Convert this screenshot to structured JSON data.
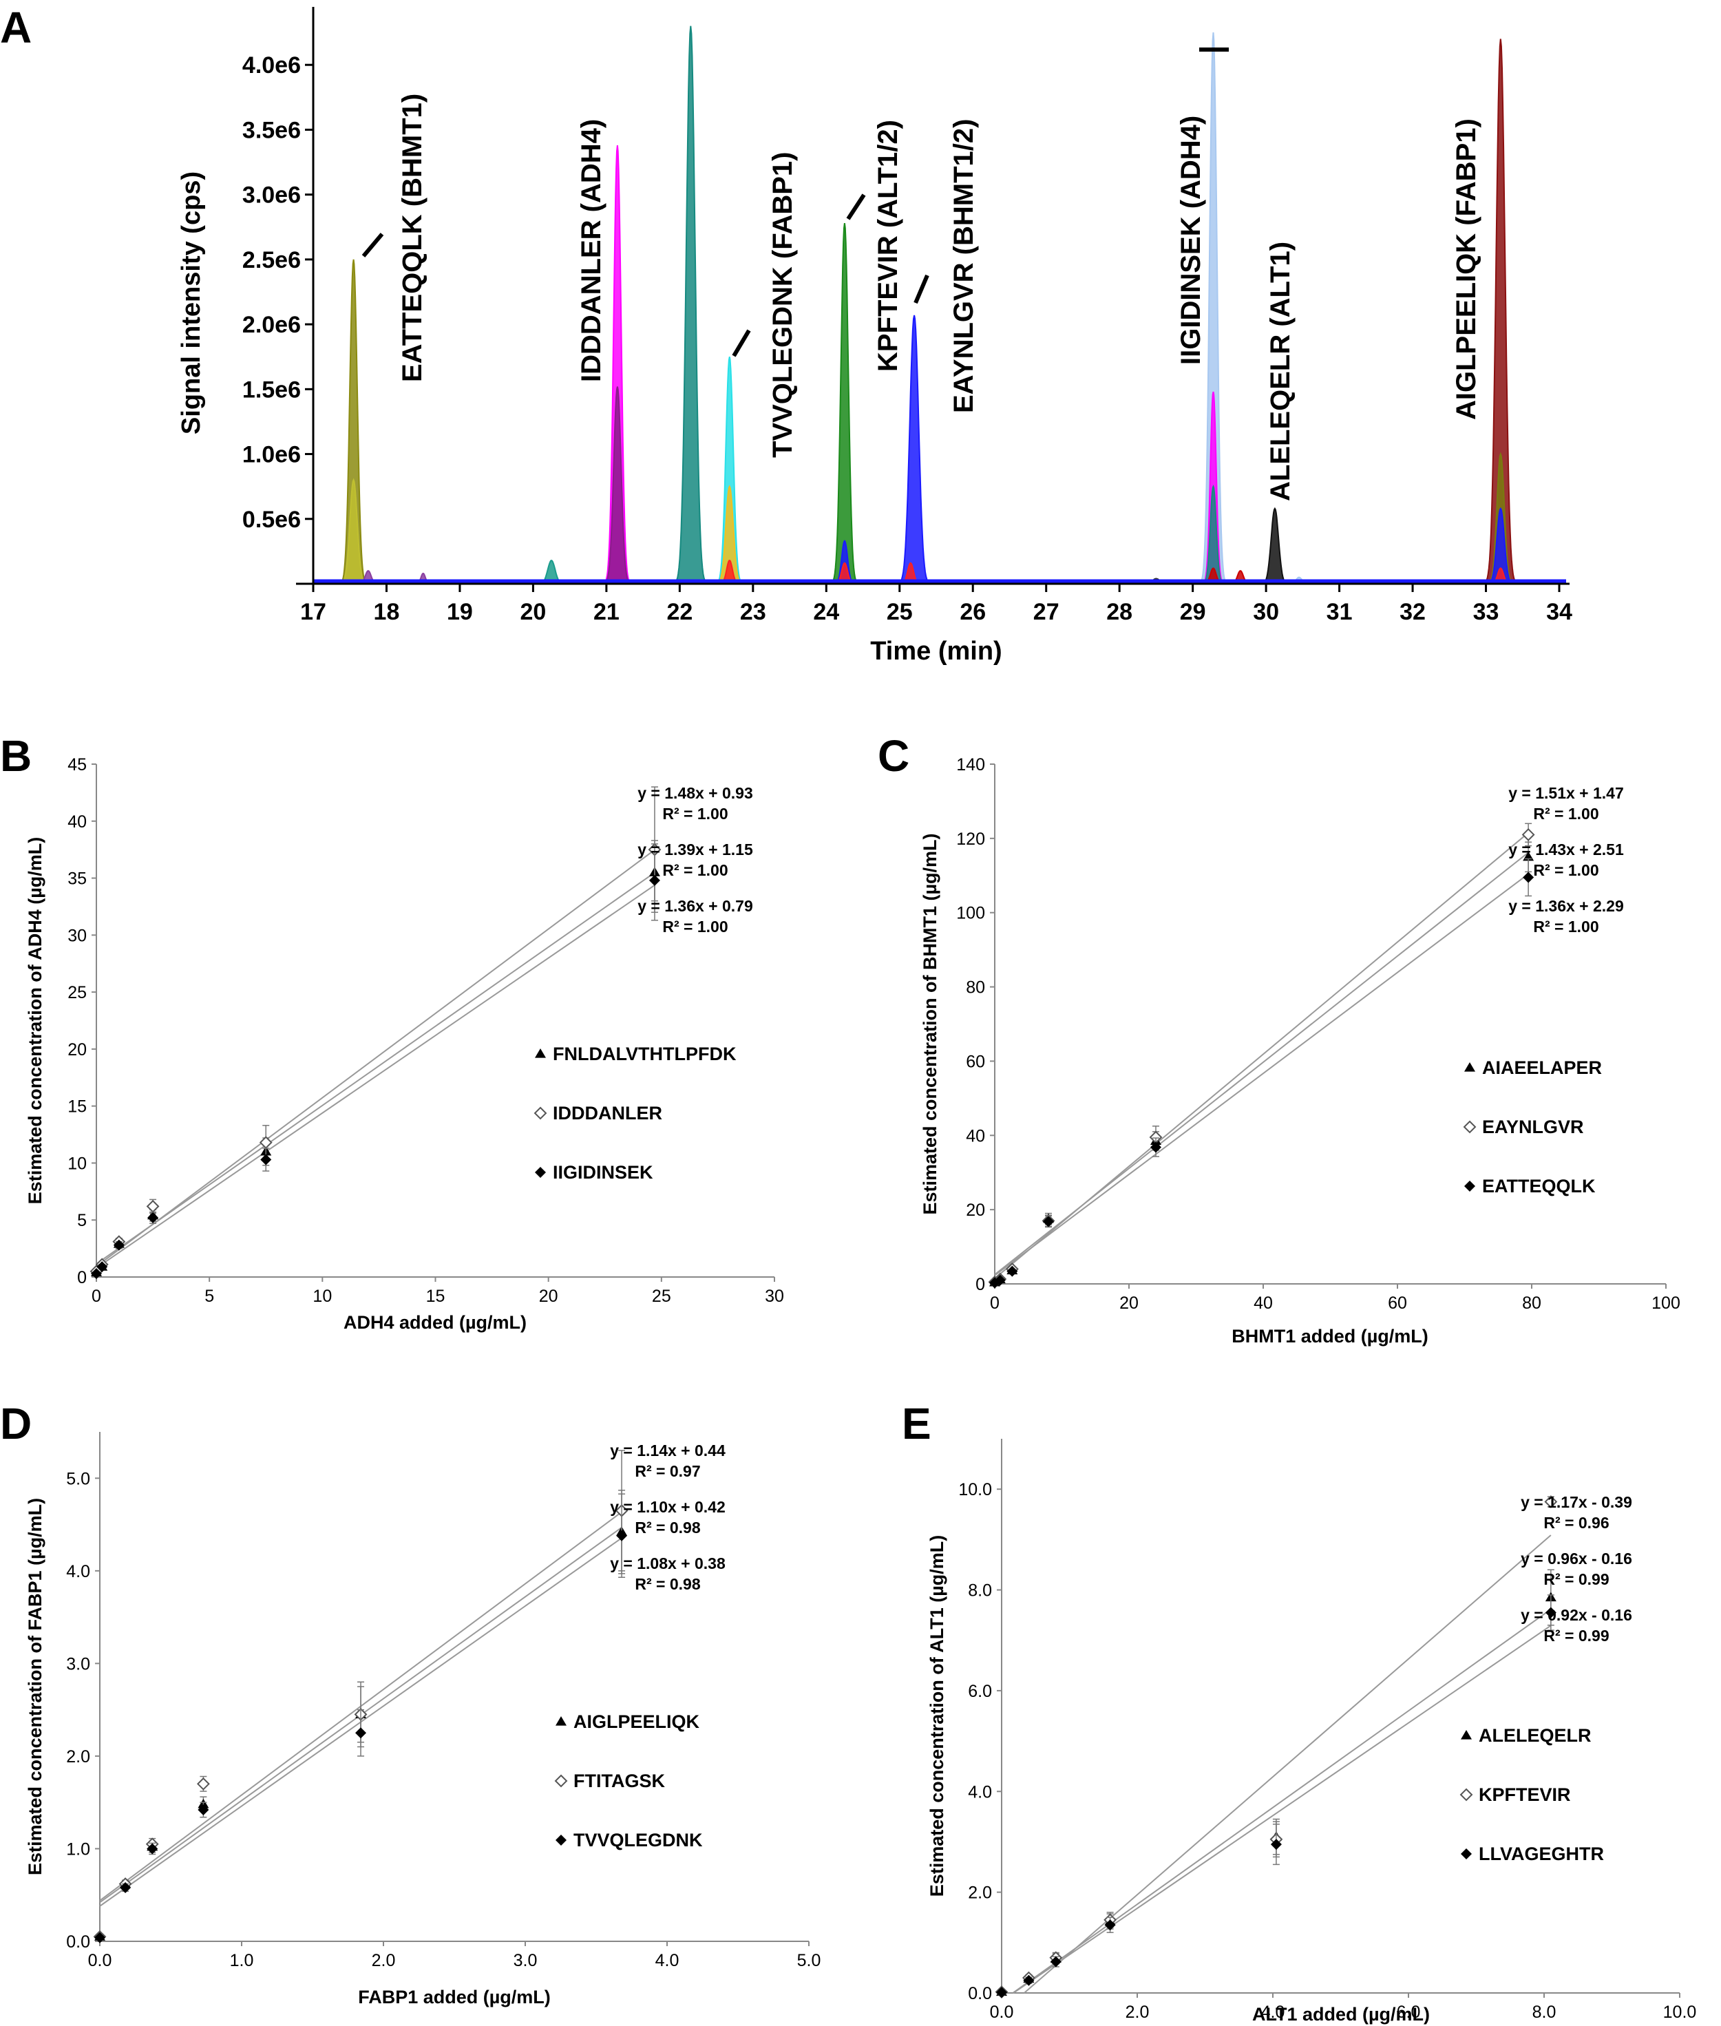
{
  "chart_data": [
    {
      "panel": "A",
      "type": "line",
      "xlabel": "Time (min)",
      "ylabel": "Signal intensity (cps)",
      "xlim": [
        17,
        34
      ],
      "ylim": [
        0,
        4.5
      ],
      "xticks": [
        "17",
        "18",
        "19",
        "20",
        "21",
        "22",
        "23",
        "24",
        "25",
        "26",
        "27",
        "28",
        "29",
        "30",
        "31",
        "32",
        "33",
        "34"
      ],
      "yticks": [
        {
          "v": 0.5,
          "label": "0.5e6"
        },
        {
          "v": 1.0,
          "label": "1.0e6"
        },
        {
          "v": 1.5,
          "label": "1.5e6"
        },
        {
          "v": 2.0,
          "label": "2.0e6"
        },
        {
          "v": 2.5,
          "label": "2.5e6"
        },
        {
          "v": 3.0,
          "label": "3.0e6"
        },
        {
          "v": 3.5,
          "label": "3.5e6"
        },
        {
          "v": 4.0,
          "label": "4.0e6"
        }
      ],
      "y_unit": "1e6 cps",
      "peaks": [
        {
          "t": 17.55,
          "h": 2.5,
          "w": 0.05,
          "color": "#8b8b10"
        },
        {
          "t": 17.55,
          "h": 0.8,
          "w": 0.05,
          "color": "#c0c030"
        },
        {
          "t": 17.75,
          "h": 0.1,
          "w": 0.04,
          "color": "#8b3fa0"
        },
        {
          "t": 18.5,
          "h": 0.08,
          "w": 0.03,
          "color": "#8b3fa0"
        },
        {
          "t": 20.25,
          "h": 0.18,
          "w": 0.05,
          "color": "#1a9c8c"
        },
        {
          "t": 21.15,
          "h": 3.38,
          "w": 0.05,
          "color": "#ff00ff"
        },
        {
          "t": 21.15,
          "h": 1.52,
          "w": 0.05,
          "color": "#8b1a8b"
        },
        {
          "t": 22.15,
          "h": 4.3,
          "w": 0.06,
          "color": "#168a80"
        },
        {
          "t": 22.68,
          "h": 1.75,
          "w": 0.05,
          "color": "#29e0e8"
        },
        {
          "t": 22.68,
          "h": 0.75,
          "w": 0.05,
          "color": "#f0c020"
        },
        {
          "t": 22.68,
          "h": 0.18,
          "w": 0.04,
          "color": "#ff2020"
        },
        {
          "t": 24.25,
          "h": 2.78,
          "w": 0.05,
          "color": "#1a8a1a"
        },
        {
          "t": 24.25,
          "h": 0.33,
          "w": 0.04,
          "color": "#1a1aff"
        },
        {
          "t": 24.25,
          "h": 0.16,
          "w": 0.04,
          "color": "#ff2020"
        },
        {
          "t": 25.15,
          "h": 0.16,
          "w": 0.04,
          "color": "#ff2020"
        },
        {
          "t": 25.2,
          "h": 2.07,
          "w": 0.06,
          "color": "#1a1aff"
        },
        {
          "t": 28.5,
          "h": 0.04,
          "w": 0.05,
          "color": "#333333"
        },
        {
          "t": 29.28,
          "h": 4.25,
          "w": 0.05,
          "color": "#a8c8f0"
        },
        {
          "t": 29.28,
          "h": 1.48,
          "w": 0.04,
          "color": "#ff00ff"
        },
        {
          "t": 29.28,
          "h": 0.75,
          "w": 0.04,
          "color": "#168a80"
        },
        {
          "t": 29.28,
          "h": 0.12,
          "w": 0.04,
          "color": "#cc0000"
        },
        {
          "t": 29.65,
          "h": 0.1,
          "w": 0.04,
          "color": "#cc0000"
        },
        {
          "t": 30.12,
          "h": 0.58,
          "w": 0.05,
          "color": "#111111"
        },
        {
          "t": 30.45,
          "h": 0.05,
          "w": 0.04,
          "color": "#a8c8f0"
        },
        {
          "t": 33.2,
          "h": 4.2,
          "w": 0.06,
          "color": "#8b1010"
        },
        {
          "t": 33.2,
          "h": 1.0,
          "w": 0.05,
          "color": "#7a7a10"
        },
        {
          "t": 33.2,
          "h": 0.58,
          "w": 0.05,
          "color": "#1a1aff"
        },
        {
          "t": 33.2,
          "h": 0.12,
          "w": 0.04,
          "color": "#ff2020"
        }
      ],
      "peak_labels": [
        "EATTEQQLK (BHMT1)",
        "IDDDANLER (ADH4)",
        "TVVQLEGDNK (FABP1)",
        "KPFTEVIR (ALT1/2)",
        "EAYNLGVR (BHMT1/2)",
        "IIGIDINSEK (ADH4)",
        "ALELEQELR (ALT1)",
        "AIGLPEELIQK (FABP1)"
      ]
    },
    {
      "panel": "B",
      "type": "scatter",
      "xlabel": "ADH4 added (µg/mL)",
      "ylabel": "Estimated  concentration of ADH4 (µg/mL)",
      "xlim": [
        0,
        30
      ],
      "ylim": [
        0,
        45
      ],
      "xticks": [
        0,
        5,
        10,
        15,
        20,
        25,
        30
      ],
      "yticks": [
        0,
        5,
        10,
        15,
        20,
        25,
        30,
        35,
        40,
        45
      ],
      "series": [
        {
          "name": "FNLDALVTHTLPFDK",
          "marker": "triangle",
          "x": [
            0,
            0.25,
            1,
            2.5,
            7.5,
            24.7
          ],
          "y": [
            0.4,
            0.9,
            2.9,
            5.4,
            11.0,
            35.5
          ],
          "err": [
            0.1,
            0.2,
            0.3,
            0.5,
            1.2,
            2.5
          ]
        },
        {
          "name": "IDDDANLER",
          "marker": "diamond-open",
          "x": [
            0,
            0.25,
            1,
            2.5,
            7.5,
            24.7
          ],
          "y": [
            0.5,
            1.1,
            3.1,
            6.2,
            11.8,
            37.5
          ],
          "err": [
            0.1,
            0.2,
            0.3,
            0.6,
            1.5,
            5.5
          ]
        },
        {
          "name": "IIGIDINSEK",
          "marker": "diamond",
          "x": [
            0,
            0.25,
            1,
            2.5,
            7.5,
            24.7
          ],
          "y": [
            0.3,
            0.9,
            2.8,
            5.2,
            10.3,
            34.8
          ],
          "err": [
            0.1,
            0.2,
            0.3,
            0.5,
            1.0,
            3.5
          ]
        }
      ],
      "fits": [
        {
          "slope": 1.48,
          "intercept": 0.93,
          "equation": "y = 1.48x + 0.93",
          "r2": "R² = 1.00"
        },
        {
          "slope": 1.39,
          "intercept": 1.15,
          "equation": "y = 1.39x + 1.15",
          "r2": "R² = 1.00"
        },
        {
          "slope": 1.36,
          "intercept": 0.79,
          "equation": "y = 1.36x + 0.79",
          "r2": "R² = 1.00"
        }
      ]
    },
    {
      "panel": "C",
      "type": "scatter",
      "xlabel": "BHMT1 added (µg/mL)",
      "ylabel": "Estimated  concentration of BHMT1 (µg/mL)",
      "xlim": [
        0,
        100
      ],
      "ylim": [
        0,
        140
      ],
      "xticks": [
        0,
        20,
        40,
        60,
        80,
        100
      ],
      "yticks": [
        0,
        20,
        40,
        60,
        80,
        100,
        120,
        140
      ],
      "series": [
        {
          "name": "AIAEELAPER",
          "marker": "triangle",
          "x": [
            0,
            0.8,
            2.6,
            8,
            24,
            79.5
          ],
          "y": [
            0.4,
            1.2,
            3.6,
            17.5,
            38.5,
            115
          ],
          "err": [
            0.1,
            0.3,
            0.5,
            1.5,
            2.5,
            4
          ]
        },
        {
          "name": "EAYNLGVR",
          "marker": "diamond-open",
          "x": [
            0,
            0.8,
            2.6,
            8,
            24,
            79.5
          ],
          "y": [
            0.5,
            1.3,
            4.0,
            17.0,
            39.5,
            121
          ],
          "err": [
            0.1,
            0.3,
            0.5,
            1.5,
            3,
            3
          ]
        },
        {
          "name": "EATTEQQLK",
          "marker": "diamond",
          "x": [
            0,
            0.8,
            2.6,
            8,
            24,
            79.5
          ],
          "y": [
            0.3,
            1.0,
            3.4,
            16.8,
            36.8,
            109.5
          ],
          "err": [
            0.1,
            0.3,
            0.5,
            1.5,
            2.5,
            5
          ]
        }
      ],
      "fits": [
        {
          "slope": 1.51,
          "intercept": 1.47,
          "equation": "y = 1.51x + 1.47",
          "r2": "R² = 1.00"
        },
        {
          "slope": 1.43,
          "intercept": 2.51,
          "equation": "y = 1.43x + 2.51",
          "r2": "R² = 1.00"
        },
        {
          "slope": 1.36,
          "intercept": 2.29,
          "equation": "y = 1.36x + 2.29",
          "r2": "R² = 1.00"
        }
      ]
    },
    {
      "panel": "D",
      "type": "scatter",
      "xlabel": "FABP1 added (µg/mL)",
      "ylabel": "Estimated  concentration of FABP1 (µg/mL)",
      "xlim": [
        0,
        5
      ],
      "ylim": [
        0,
        5.5
      ],
      "xticks": [
        "0.0",
        "1.0",
        "2.0",
        "3.0",
        "4.0",
        "5.0"
      ],
      "yticks": [
        "0.0",
        "1.0",
        "2.0",
        "3.0",
        "4.0",
        "5.0"
      ],
      "series": [
        {
          "name": "AIGLPEELIQK",
          "marker": "triangle",
          "x": [
            0,
            0.18,
            0.37,
            0.73,
            1.84,
            3.68
          ],
          "y": [
            0.05,
            0.62,
            1.02,
            1.48,
            2.45,
            4.42
          ],
          "err": [
            0.02,
            0.04,
            0.06,
            0.08,
            0.3,
            0.45
          ]
        },
        {
          "name": "FTITAGSK",
          "marker": "diamond-open",
          "x": [
            0,
            0.18,
            0.37,
            0.73,
            1.84,
            3.68
          ],
          "y": [
            0.05,
            0.62,
            1.05,
            1.7,
            2.45,
            4.65
          ],
          "err": [
            0.02,
            0.04,
            0.06,
            0.08,
            0.35,
            0.65
          ]
        },
        {
          "name": "TVVQLEGDNK",
          "marker": "diamond",
          "x": [
            0,
            0.18,
            0.37,
            0.73,
            1.84,
            3.68
          ],
          "y": [
            0.04,
            0.58,
            1.0,
            1.42,
            2.25,
            4.38
          ],
          "err": [
            0.02,
            0.04,
            0.06,
            0.08,
            0.25,
            0.45
          ]
        }
      ],
      "fits": [
        {
          "slope": 1.14,
          "intercept": 0.44,
          "equation": "y = 1.14x + 0.44",
          "r2": "R² = 0.97"
        },
        {
          "slope": 1.1,
          "intercept": 0.42,
          "equation": "y = 1.10x + 0.42",
          "r2": "R² = 0.98"
        },
        {
          "slope": 1.08,
          "intercept": 0.38,
          "equation": "y = 1.08x + 0.38",
          "r2": "R² = 0.98"
        }
      ]
    },
    {
      "panel": "E",
      "type": "scatter",
      "xlabel": "ALT1 added (µg/mL)",
      "ylabel": "Estimated  concentration of ALT1 (µg/mL)",
      "xlim": [
        0,
        10
      ],
      "ylim": [
        0,
        11
      ],
      "xticks": [
        "0.0",
        "2.0",
        "4.0",
        "6.0",
        "8.0",
        "10.0"
      ],
      "yticks": [
        "0.0",
        "2.0",
        "4.0",
        "6.0",
        "8.0",
        "10.0"
      ],
      "series": [
        {
          "name": "ALELEQELR",
          "marker": "triangle",
          "x": [
            0,
            0.4,
            0.8,
            1.6,
            4.05,
            8.1
          ],
          "y": [
            0.02,
            0.28,
            0.68,
            1.42,
            3.1,
            7.85
          ],
          "err": [
            0.01,
            0.06,
            0.1,
            0.15,
            0.35,
            0.55
          ]
        },
        {
          "name": "KPFTEVIR",
          "marker": "diamond-open",
          "x": [
            0,
            0.4,
            0.8,
            1.6,
            4.05,
            8.1
          ],
          "y": [
            0.02,
            0.3,
            0.7,
            1.45,
            3.05,
            9.75
          ],
          "err": [
            0.01,
            0.06,
            0.1,
            0.15,
            0.35,
            0.1
          ]
        },
        {
          "name": "LLVAGEGHTR",
          "marker": "diamond",
          "x": [
            0,
            0.4,
            0.8,
            1.6,
            4.05,
            8.1
          ],
          "y": [
            0.01,
            0.25,
            0.62,
            1.35,
            2.95,
            7.55
          ],
          "err": [
            0.01,
            0.06,
            0.1,
            0.15,
            0.4,
            0.35
          ]
        }
      ],
      "fits": [
        {
          "slope": 1.17,
          "intercept": -0.39,
          "equation": "y = 1.17x - 0.39",
          "r2": "R² = 0.96"
        },
        {
          "slope": 0.96,
          "intercept": -0.16,
          "equation": "y = 0.96x - 0.16",
          "r2": "R² = 0.99"
        },
        {
          "slope": 0.92,
          "intercept": -0.16,
          "equation": "y = 0.92x - 0.16",
          "r2": "R² = 0.99"
        }
      ]
    }
  ]
}
